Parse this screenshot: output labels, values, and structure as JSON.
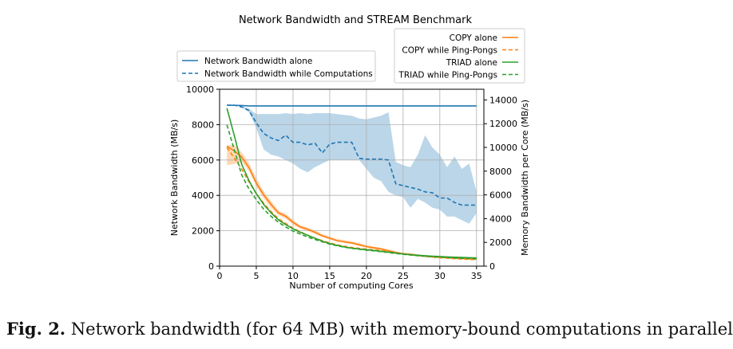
{
  "chart_data": {
    "type": "line",
    "title": "Network Bandwidth and STREAM Benchmark",
    "xlabel": "Number of computing Cores",
    "ylabel_left": "Network Bandwidth (MB/s)",
    "ylabel_right": "Memory Bandwidth per Core (MB/s)",
    "xlim": [
      0,
      36
    ],
    "ylim_left": [
      0,
      10000
    ],
    "ylim_right": [
      0,
      14900
    ],
    "x_ticks": [
      0,
      5,
      10,
      15,
      20,
      25,
      30,
      35
    ],
    "y_ticks_left": [
      0,
      2000,
      4000,
      6000,
      8000,
      10000
    ],
    "y_ticks_right": [
      0,
      2000,
      4000,
      6000,
      8000,
      10000,
      12000,
      14000
    ],
    "grid": true,
    "legend_left_placement": "upper-left",
    "legend_right_placement": "upper-right",
    "series": [
      {
        "name": "Network Bandwidth alone",
        "axis": "left",
        "color": "#1f77b4",
        "style": "solid",
        "x": [
          1,
          2,
          3,
          4,
          5,
          6,
          7,
          8,
          9,
          10,
          11,
          12,
          13,
          14,
          15,
          16,
          17,
          18,
          19,
          20,
          21,
          22,
          23,
          24,
          25,
          26,
          27,
          28,
          29,
          30,
          31,
          32,
          33,
          34,
          35
        ],
        "y": [
          9100,
          9090,
          9080,
          9060,
          9060,
          9060,
          9060,
          9060,
          9060,
          9060,
          9060,
          9060,
          9060,
          9060,
          9060,
          9060,
          9060,
          9060,
          9060,
          9060,
          9060,
          9060,
          9060,
          9060,
          9060,
          9060,
          9060,
          9060,
          9060,
          9060,
          9060,
          9060,
          9060,
          9060,
          9060
        ]
      },
      {
        "name": "Network Bandwidth while Computations",
        "axis": "left",
        "color": "#1f77b4",
        "style": "dashed",
        "x": [
          1,
          2,
          3,
          4,
          5,
          6,
          7,
          8,
          9,
          10,
          11,
          12,
          13,
          14,
          15,
          16,
          17,
          18,
          19,
          20,
          21,
          22,
          23,
          24,
          25,
          26,
          27,
          28,
          29,
          30,
          31,
          32,
          33,
          34,
          35
        ],
        "y": [
          9100,
          9100,
          9000,
          8800,
          8100,
          7500,
          7250,
          7100,
          7400,
          7000,
          7000,
          6850,
          6950,
          6400,
          6900,
          7000,
          7000,
          7000,
          6100,
          6050,
          6050,
          6050,
          6000,
          4650,
          4550,
          4450,
          4350,
          4200,
          4150,
          3850,
          3850,
          3600,
          3450,
          3450,
          3450
        ],
        "band_low": [
          9100,
          9100,
          9000,
          8700,
          7800,
          6600,
          6300,
          6200,
          6000,
          5800,
          5500,
          5300,
          5600,
          5800,
          6000,
          6000,
          6000,
          6000,
          6000,
          5500,
          5000,
          4800,
          4200,
          4000,
          3900,
          3300,
          3800,
          3600,
          3300,
          3200,
          2800,
          2800,
          2600,
          2400,
          3000
        ],
        "band_high": [
          9100,
          9100,
          9050,
          8900,
          8600,
          8600,
          8600,
          8600,
          8650,
          8600,
          8650,
          8600,
          8650,
          8650,
          8650,
          8600,
          8550,
          8500,
          8350,
          8300,
          8400,
          8500,
          8700,
          5900,
          5700,
          5600,
          6300,
          7400,
          6700,
          6300,
          5600,
          6200,
          5500,
          5800,
          4200
        ]
      },
      {
        "name": "COPY alone",
        "axis": "right",
        "color": "#ff7f0e",
        "style": "solid",
        "x": [
          1,
          2,
          3,
          4,
          5,
          6,
          7,
          8,
          9,
          10,
          11,
          12,
          13,
          14,
          15,
          16,
          17,
          18,
          19,
          20,
          21,
          22,
          23,
          24,
          25,
          26,
          27,
          28,
          29,
          30,
          31,
          32,
          33,
          34,
          35
        ],
        "y": [
          10100,
          9700,
          9200,
          8300,
          7000,
          6000,
          5200,
          4500,
          4200,
          3700,
          3300,
          3100,
          2850,
          2550,
          2350,
          2150,
          2050,
          1950,
          1800,
          1650,
          1550,
          1450,
          1300,
          1150,
          1050,
          1000,
          920,
          850,
          800,
          760,
          720,
          680,
          650,
          620,
          600
        ],
        "band_low": [
          8500,
          8600,
          8800,
          8000,
          6700,
          5700,
          4900,
          4300,
          4000,
          3500,
          3150,
          2950,
          2700,
          2450,
          2250,
          2050,
          1950,
          1850,
          1700,
          1550,
          1450,
          1350,
          1220,
          1080,
          990,
          940,
          860,
          800,
          750,
          710,
          670,
          640,
          610,
          580,
          560
        ],
        "band_high": [
          10200,
          10200,
          9600,
          8700,
          7400,
          6300,
          5500,
          4700,
          4400,
          3900,
          3450,
          3250,
          3000,
          2700,
          2500,
          2300,
          2200,
          2100,
          1950,
          1750,
          1650,
          1550,
          1400,
          1250,
          1120,
          1060,
          980,
          900,
          850,
          810,
          770,
          730,
          700,
          670,
          650
        ]
      },
      {
        "name": "COPY while Ping-Pongs",
        "axis": "right",
        "color": "#ff7f0e",
        "style": "dashed",
        "x": [
          1,
          2,
          3,
          4,
          5,
          6,
          7,
          8,
          9,
          10,
          11,
          12,
          13,
          14,
          15,
          16,
          17,
          18,
          19,
          20,
          21,
          22,
          23,
          24,
          25,
          26,
          27,
          28,
          29,
          30,
          31,
          32,
          33,
          34,
          35
        ],
        "y": [
          10000,
          9100,
          8200,
          7100,
          6100,
          5300,
          4600,
          4000,
          3600,
          3200,
          2900,
          2600,
          2350,
          2150,
          1950,
          1800,
          1680,
          1580,
          1500,
          1430,
          1370,
          1300,
          1220,
          1130,
          1040,
          960,
          880,
          810,
          760,
          710,
          670,
          630,
          600,
          570,
          550
        ]
      },
      {
        "name": "TRIAD alone",
        "axis": "right",
        "color": "#2ca02c",
        "style": "solid",
        "x": [
          1,
          2,
          3,
          4,
          5,
          6,
          7,
          8,
          9,
          10,
          11,
          12,
          13,
          14,
          15,
          16,
          17,
          18,
          19,
          20,
          21,
          22,
          23,
          24,
          25,
          26,
          27,
          28,
          29,
          30,
          31,
          32,
          33,
          34,
          35
        ],
        "y": [
          13300,
          11000,
          8600,
          7200,
          6100,
          5200,
          4500,
          3900,
          3500,
          3150,
          2850,
          2600,
          2350,
          2100,
          1900,
          1750,
          1620,
          1520,
          1440,
          1380,
          1320,
          1250,
          1180,
          1100,
          1020,
          960,
          920,
          880,
          840,
          810,
          780,
          750,
          730,
          710,
          690
        ]
      },
      {
        "name": "TRIAD while Ping-Pongs",
        "axis": "right",
        "color": "#2ca02c",
        "style": "dashed",
        "x": [
          1,
          2,
          3,
          4,
          5,
          6,
          7,
          8,
          9,
          10,
          11,
          12,
          13,
          14,
          15,
          16,
          17,
          18,
          19,
          20,
          21,
          22,
          23,
          24,
          25,
          26,
          27,
          28,
          29,
          30,
          31,
          32,
          33,
          34,
          35
        ],
        "y": [
          11900,
          9800,
          7700,
          6500,
          5600,
          4800,
          4200,
          3700,
          3300,
          2950,
          2700,
          2450,
          2250,
          2050,
          1850,
          1720,
          1600,
          1500,
          1420,
          1350,
          1290,
          1220,
          1150,
          1070,
          1000,
          930,
          880,
          830,
          790,
          750,
          720,
          690,
          660,
          640,
          620
        ]
      }
    ]
  },
  "caption": {
    "label": "Fig. 2.",
    "text": " Network bandwidth (for 64 MB) with memory-bound computations in parallel"
  }
}
